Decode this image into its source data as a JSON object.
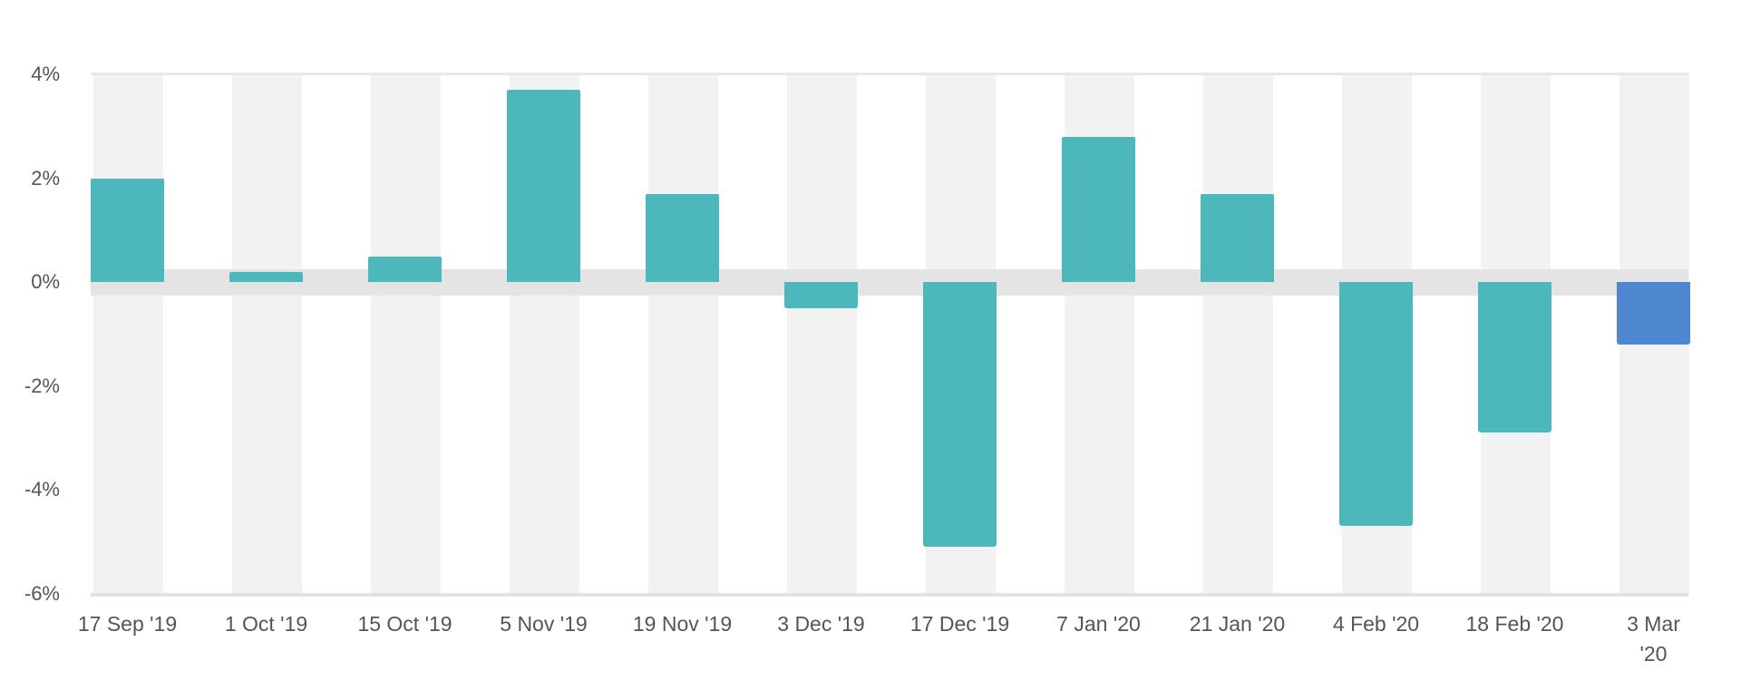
{
  "chart_data": {
    "type": "bar",
    "title": "",
    "xlabel": "",
    "ylabel": "",
    "categories": [
      "17 Sep '19",
      "1 Oct '19",
      "15 Oct '19",
      "5 Nov '19",
      "19 Nov '19",
      "3 Dec '19",
      "17 Dec '19",
      "7 Jan '20",
      "21 Jan '20",
      "4 Feb '20",
      "18 Feb '20",
      "3 Mar '20"
    ],
    "values": [
      2.0,
      0.2,
      0.5,
      3.7,
      1.7,
      -0.5,
      -5.1,
      2.8,
      1.7,
      -4.7,
      -2.9,
      -1.2
    ],
    "unit": "%",
    "ylim": [
      -6,
      4
    ],
    "yticks": [
      "4%",
      "2%",
      "0%",
      "-2%",
      "-4%",
      "-6%"
    ],
    "ytick_values": [
      4,
      2,
      0,
      -2,
      -4,
      -6
    ],
    "grid": "alternating vertical column bands",
    "legend": null,
    "colors": {
      "default_bar": "#4cb8bb",
      "highlight_bar": "#4f86d0",
      "highlight_index": 11,
      "column_band": "#f2f2f2",
      "zero_band": "#e4e4e4",
      "axis_text": "#555555"
    }
  }
}
